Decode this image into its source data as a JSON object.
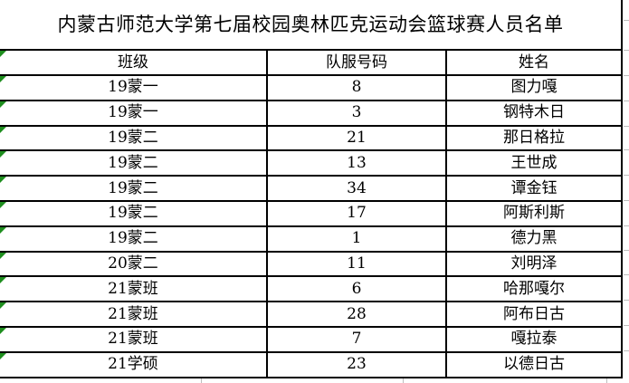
{
  "sheet": {
    "title": "内蒙古师范大学第七届校园奥林匹克运动会篮球赛人员名单",
    "columns": [
      "班级",
      "队服号码",
      "姓名"
    ],
    "rows": [
      {
        "class": "19蒙一",
        "number": "8",
        "name": "图力嘎"
      },
      {
        "class": "19蒙一",
        "number": "3",
        "name": "钢特木日"
      },
      {
        "class": "19蒙二",
        "number": "21",
        "name": "那日格拉"
      },
      {
        "class": "19蒙二",
        "number": "13",
        "name": "王世成"
      },
      {
        "class": "19蒙二",
        "number": "34",
        "name": "谭金钰"
      },
      {
        "class": "19蒙二",
        "number": "17",
        "name": "阿斯利斯"
      },
      {
        "class": "19蒙二",
        "number": "1",
        "name": "德力黑"
      },
      {
        "class": "20蒙二",
        "number": "11",
        "name": "刘明泽"
      },
      {
        "class": "21蒙班",
        "number": "6",
        "name": "哈那嘎尔"
      },
      {
        "class": "21蒙班",
        "number": "28",
        "name": "阿布日古"
      },
      {
        "class": "21蒙班",
        "number": "7",
        "name": "嘎拉泰"
      },
      {
        "class": "21学硕",
        "number": "23",
        "name": "以德日古"
      }
    ],
    "colors": {
      "border": "#000000",
      "background": "#ffffff",
      "error_indicator": "#1e8e1e",
      "gridline": "#bdbdbd",
      "text": "#000000"
    }
  }
}
